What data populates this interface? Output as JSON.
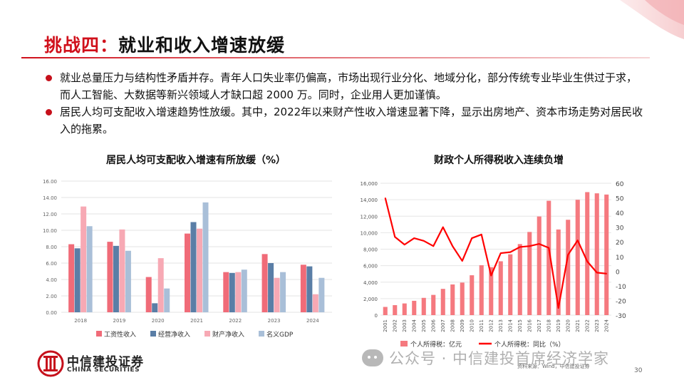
{
  "slide": {
    "title_part1": "挑战四：",
    "title_part2": "就业和收入增速放缓",
    "page_number": "30",
    "source_note": "资料来源：Wind，中信建投证券",
    "watermark": "公众号 · 中信建投首席经济学家",
    "logo_cn": "中信建投证券",
    "logo_en": "CHINA SECURITIES"
  },
  "bullets": [
    "就业总量压力与结构性矛盾并存。青年人口失业率仍偏高，市场出现行业分化、地域分化，部分传统专业毕业生供过于求，而人工智能、大数据等新兴领域人才缺口超 2000 万。同时，企业用人更加谨慎。",
    "居民人均可支配收入增速趋势性放缓。其中，2022年以来财产性收入增速显著下降，显示出房地产、资本市场走势对居民收入的拖累。"
  ],
  "colors": {
    "accent": "#d0101b",
    "wage": "#f06b78",
    "business": "#5a7ea6",
    "property": "#f7a9b4",
    "gdp": "#a9bfd8",
    "tax_bar": "#f5797f",
    "tax_line": "#ff0000"
  },
  "chart_data": [
    {
      "type": "bar",
      "title": "居民人均可支配收入增速有所放缓（%）",
      "categories": [
        "2018",
        "2019",
        "2020",
        "2021",
        "2022",
        "2023",
        "2024"
      ],
      "series": [
        {
          "name": "工资性收入",
          "values": [
            8.3,
            8.6,
            4.3,
            9.6,
            4.9,
            7.1,
            5.8
          ]
        },
        {
          "name": "经营净收入",
          "values": [
            7.8,
            8.1,
            1.1,
            11.0,
            4.8,
            6.0,
            5.6
          ]
        },
        {
          "name": "财产净收入",
          "values": [
            12.9,
            10.1,
            6.6,
            10.2,
            4.9,
            4.2,
            2.2
          ]
        },
        {
          "name": "名义GDP",
          "values": [
            10.5,
            7.5,
            2.9,
            13.4,
            5.2,
            4.9,
            4.2
          ]
        }
      ],
      "ylim": [
        0,
        16
      ],
      "yticks": [
        "0.00",
        "2.00",
        "4.00",
        "6.00",
        "8.00",
        "10.00",
        "12.00",
        "14.00",
        "16.00"
      ],
      "grid": true,
      "legend": "bottom"
    },
    {
      "type": "bar",
      "title": "财政个人所得税收入连续负增",
      "categories": [
        "2001",
        "2002",
        "2003",
        "2004",
        "2005",
        "2006",
        "2007",
        "2008",
        "2009",
        "2010",
        "2011",
        "2012",
        "2013",
        "2014",
        "2015",
        "2016",
        "2017",
        "2018",
        "2019",
        "2020",
        "2021",
        "2022",
        "2023",
        "2024"
      ],
      "series": [
        {
          "name": "个人所得税：亿元",
          "axis": "left",
          "kind": "bar",
          "values": [
            996,
            1212,
            1418,
            1737,
            2095,
            2454,
            3186,
            3722,
            3949,
            4837,
            6054,
            5820,
            6532,
            7377,
            8618,
            10089,
            11966,
            13872,
            10388,
            11568,
            13993,
            14923,
            14775,
            14628
          ]
        },
        {
          "name": "个人所得税：同比（%）",
          "axis": "right",
          "kind": "line",
          "values": [
            49.9,
            23.4,
            18.1,
            22.5,
            20.7,
            17.1,
            30.0,
            17.0,
            7.0,
            22.5,
            25.0,
            -3.0,
            12.3,
            13.0,
            16.5,
            17.1,
            18.6,
            15.9,
            -25.1,
            11.2,
            21.0,
            6.6,
            -1.0,
            -1.7
          ]
        }
      ],
      "yticks_left": [
        "0",
        "2,000",
        "4,000",
        "6,000",
        "8,000",
        "10,000",
        "12,000",
        "14,000",
        "16,000"
      ],
      "yticks_right": [
        "-30",
        "-20",
        "-10",
        "0",
        "10",
        "20",
        "30",
        "40",
        "50",
        "60"
      ],
      "ylim_left": [
        0,
        16000
      ],
      "ylim_right": [
        -30,
        60
      ],
      "legend": "bottom"
    }
  ]
}
